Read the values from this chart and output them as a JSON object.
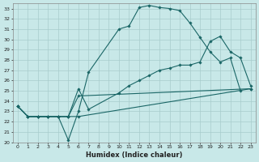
{
  "xlabel": "Humidex (Indice chaleur)",
  "bg_color": "#c8e8e8",
  "grid_color": "#a8cccc",
  "line_color": "#1a6666",
  "xlim": [
    -0.5,
    23.5
  ],
  "ylim": [
    20,
    33.5
  ],
  "xticks": [
    0,
    1,
    2,
    3,
    4,
    5,
    6,
    7,
    8,
    9,
    10,
    11,
    12,
    13,
    14,
    15,
    16,
    17,
    18,
    19,
    20,
    21,
    22,
    23
  ],
  "yticks": [
    20,
    21,
    22,
    23,
    24,
    25,
    26,
    27,
    28,
    29,
    30,
    31,
    32,
    33
  ],
  "lines": [
    {
      "x": [
        0,
        1,
        2,
        3,
        4,
        5,
        6,
        7,
        10,
        11,
        12,
        13,
        14,
        15,
        16,
        17,
        18,
        19,
        20,
        21,
        22
      ],
      "y": [
        23.5,
        22.5,
        22.5,
        22.5,
        22.5,
        20.2,
        23.0,
        26.8,
        31.0,
        31.3,
        33.1,
        33.3,
        33.1,
        33.0,
        32.8,
        31.6,
        30.2,
        28.8,
        27.8,
        28.2,
        25.0
      ]
    },
    {
      "x": [
        0,
        1,
        2,
        3,
        4,
        5,
        6,
        7,
        10,
        11,
        12,
        13,
        14,
        15,
        16,
        17,
        18,
        19,
        20,
        21,
        22,
        23
      ],
      "y": [
        23.5,
        22.5,
        22.5,
        22.5,
        22.5,
        22.5,
        25.2,
        23.2,
        24.8,
        25.5,
        26.0,
        26.5,
        27.0,
        27.2,
        27.5,
        27.5,
        27.8,
        29.8,
        30.3,
        28.8,
        28.2,
        25.5
      ]
    },
    {
      "x": [
        0,
        1,
        2,
        3,
        4,
        5,
        6,
        23
      ],
      "y": [
        23.5,
        22.5,
        22.5,
        22.5,
        22.5,
        22.5,
        24.5,
        25.2
      ]
    },
    {
      "x": [
        0,
        1,
        2,
        3,
        4,
        5,
        6,
        23
      ],
      "y": [
        23.5,
        22.5,
        22.5,
        22.5,
        22.5,
        22.5,
        22.5,
        25.2
      ]
    }
  ]
}
